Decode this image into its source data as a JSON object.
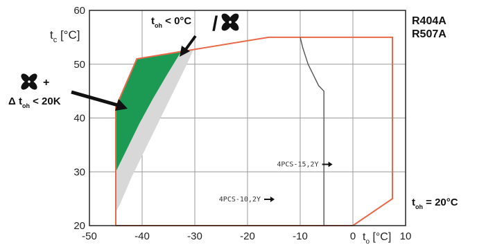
{
  "chart_data": {
    "type": "area",
    "x_ticks": [
      -50,
      -40,
      -30,
      -20,
      -10,
      0,
      10
    ],
    "y_ticks": [
      20,
      30,
      40,
      50,
      60
    ],
    "xlim": [
      -50,
      10
    ],
    "ylim": [
      20,
      60
    ],
    "grid": true,
    "ylabel": {
      "main": "t",
      "sub": "c",
      "unit": " [°C]"
    },
    "xlabel": {
      "main": "t",
      "sub": "o",
      "unit": " [°C]"
    },
    "refrigerants": [
      "R404A",
      "R507A"
    ],
    "toh_condition": {
      "main": "t",
      "sub": "oh",
      "rest": " = 20°C"
    },
    "envelope_boundary": [
      [
        -45,
        20
      ],
      [
        -45,
        42
      ],
      [
        -41,
        51
      ],
      [
        -16,
        55
      ],
      [
        7.5,
        55
      ],
      [
        7.5,
        25
      ],
      [
        0,
        20
      ],
      [
        -45,
        20
      ]
    ],
    "green_region": [
      [
        -45,
        30
      ],
      [
        -45,
        42
      ],
      [
        -41,
        51
      ],
      [
        -32.5,
        52.5
      ],
      [
        -35.3,
        48
      ],
      [
        -38,
        43.5
      ],
      [
        -40.5,
        39
      ],
      [
        -42.5,
        35
      ],
      [
        -44,
        32
      ]
    ],
    "gray_region": [
      [
        -45,
        30
      ],
      [
        -44,
        32
      ],
      [
        -42.5,
        35
      ],
      [
        -40.5,
        39
      ],
      [
        -38,
        43.5
      ],
      [
        -35.3,
        48
      ],
      [
        -32.5,
        52.5
      ],
      [
        -30.2,
        52.8
      ],
      [
        -32,
        49
      ],
      [
        -34,
        45
      ],
      [
        -36.5,
        40
      ],
      [
        -39,
        35
      ],
      [
        -42,
        29
      ],
      [
        -44.2,
        24
      ],
      [
        -45,
        22.5
      ]
    ],
    "model_line": [
      [
        -10,
        55
      ],
      [
        -9.5,
        53
      ],
      [
        -8.5,
        50
      ],
      [
        -7.5,
        48
      ],
      [
        -6.5,
        46
      ],
      [
        -5.5,
        45
      ],
      [
        -5.5,
        20
      ]
    ],
    "annotations": {
      "top": {
        "main": "t",
        "sub": "oh",
        "rest": " < 0°C"
      },
      "left_plus": "+",
      "left_delta": {
        "main": "Δ t",
        "sub": "oh",
        "rest": " < 20K"
      }
    },
    "model_labels": [
      {
        "text": "4PCS-15,2Y",
        "x": -6.5,
        "y": 31
      },
      {
        "text": "4PCS-10,2Y",
        "x": -17.5,
        "y": 24.5
      }
    ],
    "colors": {
      "boundary": "#e8684a",
      "green": "#1c9a54",
      "gray": "#d8d8d8",
      "grid": "#9a9a9a",
      "model_line": "#555555"
    },
    "icons": [
      "fan-icon",
      "fan-icon"
    ]
  }
}
